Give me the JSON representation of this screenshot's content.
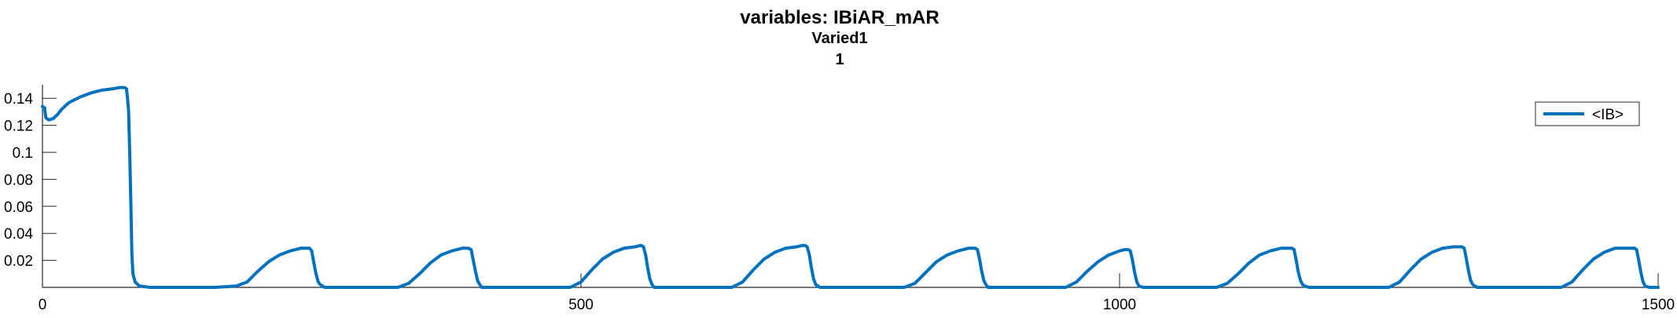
{
  "chart_data": {
    "type": "line",
    "title": "variables: IBiAR_mAR",
    "subtitle_lines": [
      "Varied1",
      "1"
    ],
    "xlabel": "",
    "ylabel": "",
    "xlim": [
      0,
      1500
    ],
    "ylim": [
      0,
      0.15
    ],
    "xticks": [
      0,
      500,
      1000,
      1500
    ],
    "xtick_labels": [
      "0",
      "500",
      "1000",
      "1500"
    ],
    "yticks": [
      0.02,
      0.04,
      0.06,
      0.08,
      0.1,
      0.12,
      0.14
    ],
    "ytick_labels": [
      "0.02",
      "0.04",
      "0.06",
      "0.08",
      "0.1",
      "0.12",
      "0.14"
    ],
    "grid": false,
    "legend_position": "top-right",
    "line_color": "#0072BD",
    "series": [
      {
        "name": "<IB>",
        "x": [
          0,
          2,
          3,
          4,
          6,
          10,
          14,
          18,
          22,
          25,
          35,
          45,
          55,
          65,
          72,
          76,
          78,
          79,
          80,
          81,
          82,
          83,
          84,
          86,
          90,
          100,
          160,
          180,
          190,
          200,
          210,
          220,
          230,
          240,
          245,
          248,
          250,
          252,
          254,
          256,
          258,
          262,
          270,
          330,
          340,
          350,
          360,
          370,
          380,
          390,
          395,
          398,
          400,
          402,
          404,
          406,
          408,
          412,
          420,
          490,
          500,
          510,
          520,
          530,
          540,
          550,
          555,
          556,
          558,
          560,
          562,
          564,
          566,
          568,
          572,
          580,
          640,
          650,
          660,
          670,
          680,
          690,
          700,
          705,
          708,
          710,
          712,
          714,
          716,
          718,
          722,
          730,
          800,
          810,
          820,
          830,
          840,
          850,
          860,
          865,
          866,
          868,
          870,
          872,
          874,
          876,
          878,
          882,
          890,
          950,
          960,
          970,
          980,
          990,
          1000,
          1005,
          1008,
          1010,
          1012,
          1014,
          1016,
          1018,
          1022,
          1030,
          1090,
          1100,
          1110,
          1120,
          1130,
          1140,
          1150,
          1160,
          1162,
          1164,
          1166,
          1168,
          1170,
          1172,
          1176,
          1184,
          1250,
          1260,
          1270,
          1280,
          1290,
          1300,
          1310,
          1315,
          1318,
          1320,
          1322,
          1324,
          1326,
          1328,
          1332,
          1340,
          1410,
          1420,
          1430,
          1440,
          1450,
          1460,
          1470,
          1478,
          1480,
          1482,
          1484,
          1486,
          1488,
          1492,
          1500
        ],
        "y": [
          0.134,
          0.133,
          0.126,
          0.125,
          0.124,
          0.125,
          0.128,
          0.132,
          0.135,
          0.137,
          0.141,
          0.144,
          0.146,
          0.147,
          0.148,
          0.148,
          0.147,
          0.14,
          0.13,
          0.1,
          0.065,
          0.025,
          0.01,
          0.004,
          0.001,
          0.0,
          0.0,
          0.001,
          0.004,
          0.012,
          0.019,
          0.024,
          0.027,
          0.029,
          0.029,
          0.029,
          0.027,
          0.018,
          0.01,
          0.004,
          0.002,
          0.0,
          0.0,
          0.0,
          0.003,
          0.01,
          0.018,
          0.024,
          0.027,
          0.029,
          0.029,
          0.028,
          0.02,
          0.012,
          0.005,
          0.002,
          0.0,
          0.0,
          0.0,
          0.0,
          0.004,
          0.013,
          0.021,
          0.026,
          0.029,
          0.03,
          0.031,
          0.031,
          0.03,
          0.024,
          0.014,
          0.006,
          0.002,
          0.0,
          0.0,
          0.0,
          0.0,
          0.004,
          0.013,
          0.021,
          0.026,
          0.029,
          0.03,
          0.031,
          0.031,
          0.03,
          0.024,
          0.014,
          0.006,
          0.002,
          0.0,
          0.0,
          0.0,
          0.003,
          0.011,
          0.019,
          0.024,
          0.027,
          0.029,
          0.029,
          0.029,
          0.028,
          0.021,
          0.012,
          0.005,
          0.002,
          0.0,
          0.0,
          0.0,
          0.0,
          0.004,
          0.012,
          0.019,
          0.024,
          0.027,
          0.028,
          0.028,
          0.027,
          0.02,
          0.011,
          0.004,
          0.001,
          0.0,
          0.0,
          0.0,
          0.003,
          0.01,
          0.018,
          0.024,
          0.027,
          0.029,
          0.029,
          0.028,
          0.02,
          0.011,
          0.005,
          0.002,
          0.001,
          0.0,
          0.0,
          0.0,
          0.004,
          0.013,
          0.021,
          0.026,
          0.029,
          0.03,
          0.03,
          0.03,
          0.029,
          0.021,
          0.012,
          0.005,
          0.002,
          0.0,
          0.0,
          0.0,
          0.004,
          0.013,
          0.021,
          0.026,
          0.029,
          0.029,
          0.029,
          0.028,
          0.02,
          0.011,
          0.004,
          0.001,
          0.0,
          0.0
        ]
      }
    ]
  }
}
